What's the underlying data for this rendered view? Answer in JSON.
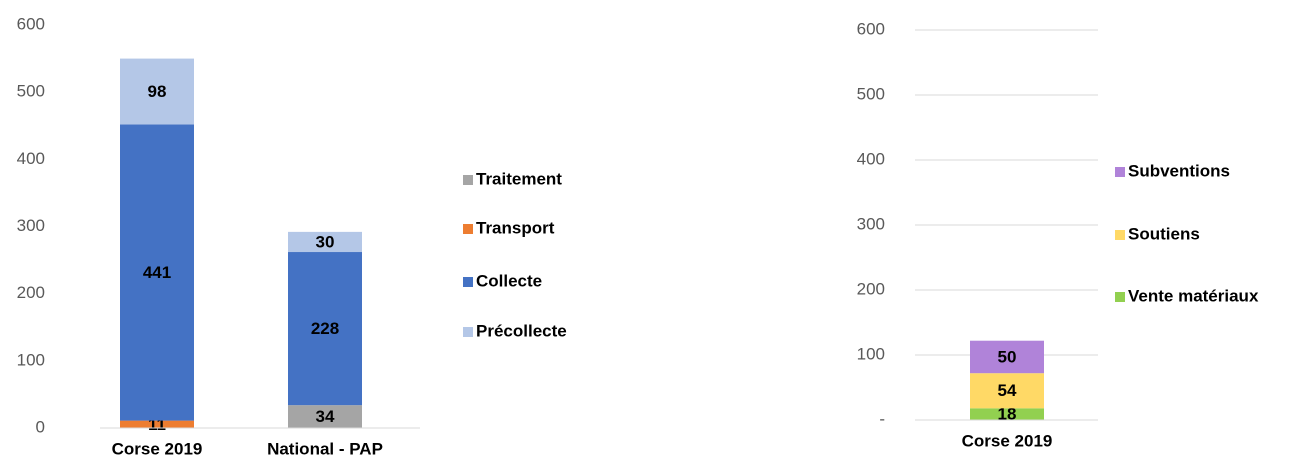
{
  "chart_data": [
    {
      "type": "bar",
      "stacked": true,
      "categories": [
        "Corse 2019",
        "National - PAP"
      ],
      "series": [
        {
          "name": "Traitement",
          "color": "#a5a5a5",
          "values": [
            null,
            34
          ]
        },
        {
          "name": "Transport",
          "color": "#ed7d31",
          "values": [
            11,
            null
          ]
        },
        {
          "name": "Collecte",
          "color": "#4472c4",
          "values": [
            441,
            228
          ]
        },
        {
          "name": "Précollecte",
          "color": "#b4c7e7",
          "values": [
            98,
            30
          ]
        }
      ],
      "ylim": [
        0,
        600
      ],
      "yticks": [
        0,
        100,
        200,
        300,
        400,
        500,
        600
      ],
      "grid": false
    },
    {
      "type": "bar",
      "stacked": true,
      "categories": [
        "Corse 2019"
      ],
      "series": [
        {
          "name": "Vente matériaux",
          "color": "#92d050",
          "values": [
            18
          ]
        },
        {
          "name": "Soutiens",
          "color": "#ffd966",
          "values": [
            54
          ]
        },
        {
          "name": "Subventions",
          "color": "#b083d9",
          "values": [
            50
          ]
        }
      ],
      "ylim": [
        0,
        600
      ],
      "yticks": [
        {
          "value": 0,
          "label": "-"
        },
        100,
        200,
        300,
        400,
        500,
        600
      ],
      "grid": true
    }
  ]
}
